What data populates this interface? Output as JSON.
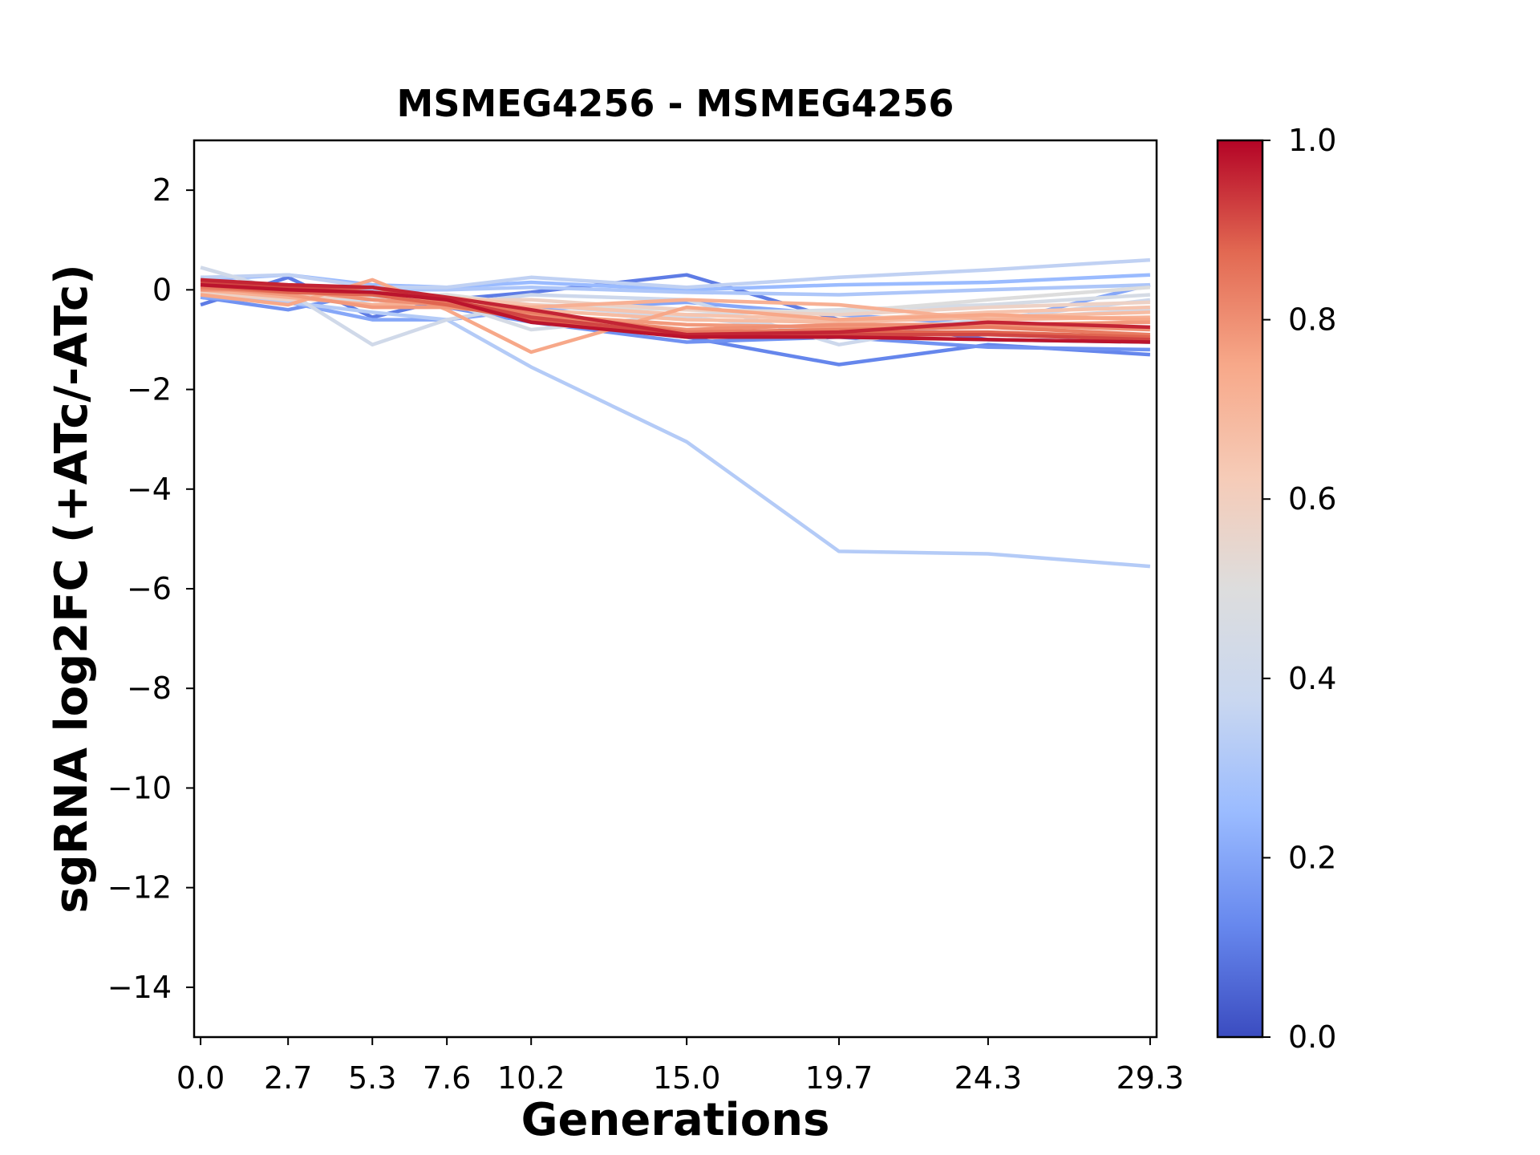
{
  "chart_data": {
    "type": "line",
    "title": "MSMEG4256 - MSMEG4256",
    "xlabel": "Generations",
    "ylabel": "sgRNA log2FC (+ATc/-ATc)",
    "x": [
      0.0,
      2.7,
      5.3,
      7.6,
      10.2,
      15.0,
      19.7,
      24.3,
      29.3
    ],
    "x_tick_labels": [
      "0.0",
      "2.7",
      "5.3",
      "7.6",
      "10.2",
      "15.0",
      "19.7",
      "24.3",
      "29.3"
    ],
    "xlim": [
      -0.2,
      29.5
    ],
    "ylim": [
      -15,
      3
    ],
    "y_ticks": [
      2,
      0,
      -2,
      -4,
      -6,
      -8,
      -10,
      -12,
      -14
    ],
    "y_tick_labels": [
      "2",
      "0",
      "−2",
      "−4",
      "−6",
      "−8",
      "−10",
      "−12",
      "−14"
    ],
    "grid": false,
    "legend": "none",
    "colorbar": {
      "cmap": "coolwarm",
      "range": [
        0.0,
        1.0
      ],
      "ticks": [
        "0.0",
        "0.2",
        "0.4",
        "0.6",
        "0.8",
        "1.0"
      ],
      "stops": [
        "#3b4cc0",
        "#6788ee",
        "#9abbff",
        "#c9d7f0",
        "#dddddd",
        "#f6cbb7",
        "#f7a889",
        "#e26952",
        "#b40426"
      ]
    },
    "series": [
      {
        "color_value": 0.32,
        "y": [
          -0.05,
          -0.25,
          -0.45,
          -0.6,
          -1.55,
          -3.05,
          -5.25,
          -5.3,
          -5.55
        ]
      },
      {
        "color_value": 0.12,
        "y": [
          -0.1,
          -0.15,
          -0.2,
          -0.3,
          -0.6,
          -0.95,
          -1.5,
          -1.1,
          -1.3
        ]
      },
      {
        "color_value": 0.1,
        "y": [
          -0.3,
          0.25,
          -0.55,
          -0.2,
          -0.05,
          0.3,
          -0.6,
          -1.0,
          -1.05
        ]
      },
      {
        "color_value": 0.15,
        "y": [
          -0.15,
          -0.4,
          -0.05,
          -0.35,
          -0.65,
          -1.05,
          -0.95,
          -1.15,
          -1.2
        ]
      },
      {
        "color_value": 0.2,
        "y": [
          -0.15,
          -0.25,
          -0.6,
          -0.6,
          -0.4,
          -0.25,
          -0.5,
          -0.7,
          0.1
        ]
      },
      {
        "color_value": 0.35,
        "y": [
          0.25,
          0.3,
          0.05,
          0.05,
          0.25,
          0.05,
          0.25,
          0.4,
          0.6
        ]
      },
      {
        "color_value": 0.25,
        "y": [
          0.2,
          0.3,
          0.1,
          0.05,
          0.15,
          0.0,
          0.1,
          0.15,
          0.3
        ]
      },
      {
        "color_value": 0.3,
        "y": [
          0.0,
          0.05,
          0.0,
          0.0,
          0.05,
          -0.05,
          -0.1,
          0.0,
          0.1
        ]
      },
      {
        "color_value": 0.42,
        "y": [
          0.45,
          -0.05,
          -1.1,
          -0.6,
          -0.3,
          -0.55,
          -0.85,
          -0.6,
          -0.4
        ]
      },
      {
        "color_value": 0.4,
        "y": [
          0.0,
          -0.1,
          -0.2,
          -0.3,
          -0.1,
          -0.2,
          -1.1,
          -0.6,
          -0.2
        ]
      },
      {
        "color_value": 0.45,
        "y": [
          0.1,
          0.0,
          -0.3,
          -0.25,
          -0.8,
          -0.5,
          -0.4,
          -0.3,
          -0.1
        ]
      },
      {
        "color_value": 0.5,
        "y": [
          0.05,
          -0.05,
          -0.15,
          -0.1,
          -0.3,
          -0.4,
          -0.45,
          -0.2,
          0.05
        ]
      },
      {
        "color_value": 0.58,
        "y": [
          -0.05,
          -0.2,
          -0.1,
          -0.2,
          -0.2,
          -0.4,
          -0.5,
          -0.35,
          -0.25
        ]
      },
      {
        "color_value": 0.65,
        "y": [
          0.0,
          -0.1,
          -0.05,
          -0.15,
          -0.3,
          -0.5,
          -0.6,
          -0.45,
          -0.35
        ]
      },
      {
        "color_value": 0.68,
        "y": [
          0.1,
          0.05,
          -0.2,
          -0.3,
          -0.4,
          -0.6,
          -0.65,
          -0.55,
          -0.45
        ]
      },
      {
        "color_value": 0.72,
        "y": [
          0.0,
          -0.15,
          -0.3,
          -0.25,
          -0.35,
          -0.2,
          -0.3,
          -0.6,
          -0.55
        ]
      },
      {
        "color_value": 0.75,
        "y": [
          -0.1,
          -0.3,
          0.2,
          -0.4,
          -1.25,
          -0.35,
          -0.6,
          -0.5,
          -0.6
        ]
      },
      {
        "color_value": 0.78,
        "y": [
          0.05,
          -0.1,
          -0.35,
          -0.35,
          -0.5,
          -0.7,
          -0.75,
          -0.7,
          -0.65
        ]
      },
      {
        "color_value": 0.8,
        "y": [
          0.0,
          0.0,
          -0.2,
          -0.3,
          -0.5,
          -0.8,
          -0.7,
          -0.7,
          -0.8
        ]
      },
      {
        "color_value": 0.84,
        "y": [
          0.05,
          -0.05,
          0.05,
          -0.25,
          -0.45,
          -0.85,
          -0.8,
          -0.75,
          -0.9
        ]
      },
      {
        "color_value": 0.88,
        "y": [
          0.1,
          -0.05,
          -0.1,
          -0.3,
          -0.6,
          -0.9,
          -0.85,
          -0.85,
          -0.95
        ]
      },
      {
        "color_value": 0.92,
        "y": [
          0.15,
          0.05,
          0.05,
          -0.2,
          -0.55,
          -0.9,
          -0.9,
          -0.9,
          -1.0
        ]
      },
      {
        "color_value": 0.96,
        "y": [
          0.2,
          0.1,
          0.05,
          -0.15,
          -0.4,
          -0.9,
          -0.85,
          -0.65,
          -0.75
        ]
      },
      {
        "color_value": 0.98,
        "y": [
          0.1,
          0.0,
          -0.05,
          -0.2,
          -0.65,
          -0.95,
          -0.95,
          -1.0,
          -1.05
        ]
      }
    ]
  }
}
